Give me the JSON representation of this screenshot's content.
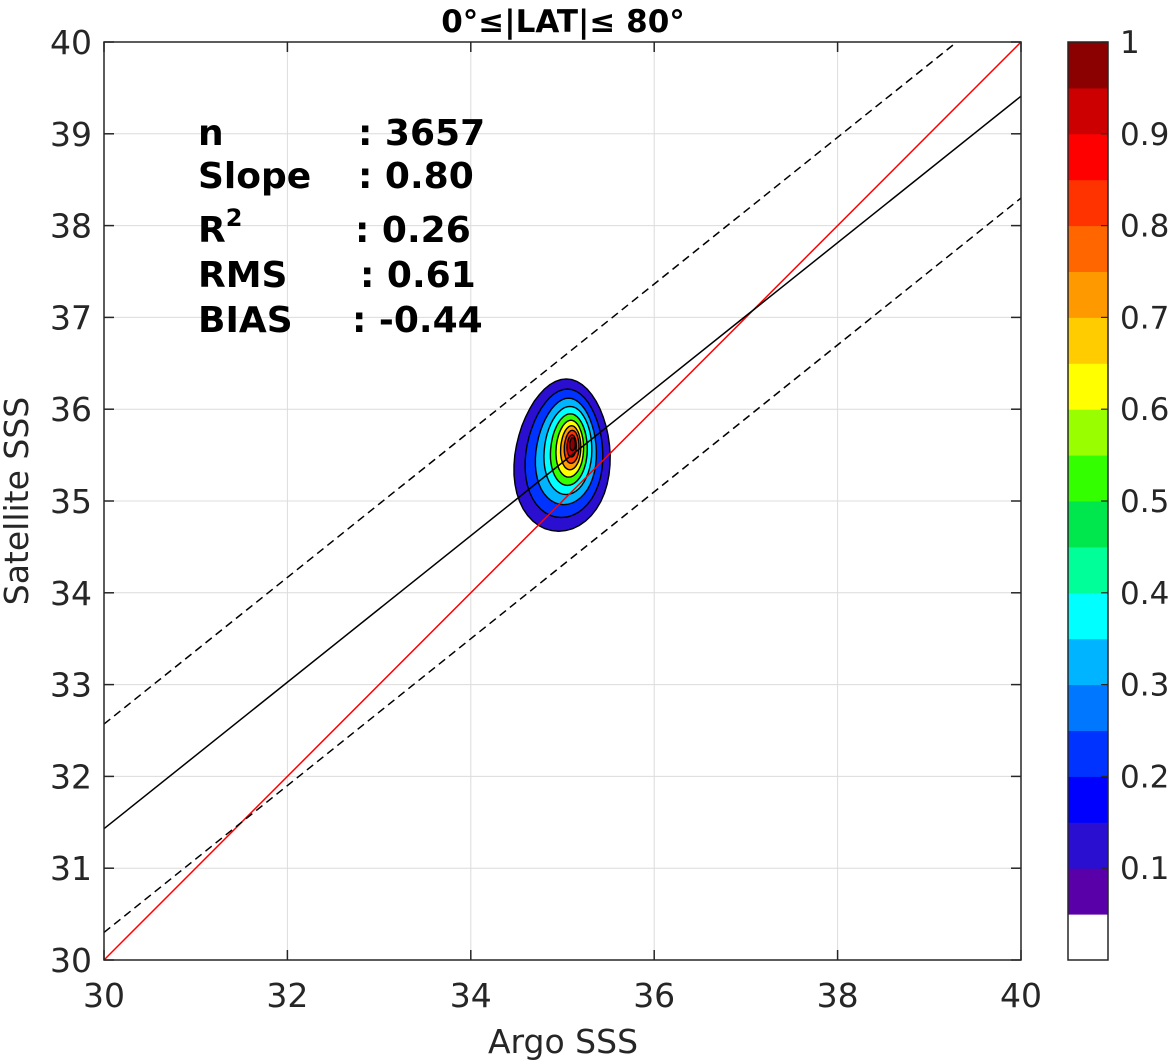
{
  "chart_data": {
    "type": "scatter",
    "title": "0°≤|LAT|≤ 80°",
    "xlabel": "Argo SSS",
    "ylabel": "Satellite SSS",
    "xlim": [
      30,
      40
    ],
    "ylim": [
      30,
      40
    ],
    "x_ticks": [
      "30",
      "32",
      "34",
      "36",
      "38",
      "40"
    ],
    "y_ticks": [
      "30",
      "31",
      "32",
      "33",
      "34",
      "35",
      "36",
      "37",
      "38",
      "39",
      "40"
    ],
    "grid": true,
    "stats": [
      {
        "key": "n",
        "sep": ":",
        "value": "3657"
      },
      {
        "key": "Slope",
        "sep": ":",
        "value": "0.80"
      },
      {
        "key": "R",
        "sup": "2",
        "sep": ":",
        "value": "0.26"
      },
      {
        "key": "RMS",
        "sep": ":",
        "value": "0.61"
      },
      {
        "key": "BIAS",
        "sep": ":",
        "value": "-0.44"
      }
    ],
    "lines": [
      {
        "role": "one-to-one",
        "color": "#ff0000",
        "style": "solid",
        "x": [
          30,
          40
        ],
        "y": [
          30,
          40
        ]
      },
      {
        "role": "regression",
        "color": "#000000",
        "style": "solid",
        "x": [
          30,
          40
        ],
        "y": [
          31.43,
          39.41
        ]
      },
      {
        "role": "upper-bound",
        "color": "#000000",
        "style": "dashed",
        "x": [
          30,
          39.3
        ],
        "y": [
          32.57,
          40
        ]
      },
      {
        "role": "lower-bound",
        "color": "#000000",
        "style": "dashed",
        "x": [
          30,
          40
        ],
        "y": [
          30.3,
          38.3
        ]
      }
    ],
    "density": {
      "center": [
        35.1,
        35.55
      ],
      "levels": [
        0.05,
        0.15,
        0.25,
        0.35,
        0.45,
        0.55,
        0.65,
        0.75,
        0.85,
        0.95
      ],
      "contours": [
        {
          "level": 0.05,
          "rx": 0.52,
          "ry": 0.83,
          "cx": 35.0,
          "cy": 35.5
        },
        {
          "level": 0.15,
          "rx": 0.42,
          "ry": 0.7,
          "cx": 35.02,
          "cy": 35.52
        },
        {
          "level": 0.25,
          "rx": 0.33,
          "ry": 0.58,
          "cx": 35.04,
          "cy": 35.54
        },
        {
          "level": 0.35,
          "rx": 0.26,
          "ry": 0.48,
          "cx": 35.06,
          "cy": 35.55
        },
        {
          "level": 0.45,
          "rx": 0.2,
          "ry": 0.39,
          "cx": 35.07,
          "cy": 35.56
        },
        {
          "level": 0.55,
          "rx": 0.15,
          "ry": 0.31,
          "cx": 35.08,
          "cy": 35.57
        },
        {
          "level": 0.65,
          "rx": 0.11,
          "ry": 0.24,
          "cx": 35.09,
          "cy": 35.58
        },
        {
          "level": 0.75,
          "rx": 0.08,
          "ry": 0.18,
          "cx": 35.1,
          "cy": 35.59
        },
        {
          "level": 0.85,
          "rx": 0.05,
          "ry": 0.12,
          "cx": 35.1,
          "cy": 35.6
        },
        {
          "level": 0.95,
          "rx": 0.03,
          "ry": 0.07,
          "cx": 35.11,
          "cy": 35.62
        }
      ]
    },
    "colorbar": {
      "range": [
        0,
        1
      ],
      "tick_labels": [
        "0.1",
        "0.2",
        "0.3",
        "0.4",
        "0.5",
        "0.6",
        "0.7",
        "0.8",
        "0.9",
        "1"
      ],
      "tick_values": [
        0.1,
        0.2,
        0.3,
        0.4,
        0.5,
        0.6,
        0.7,
        0.8,
        0.9,
        1.0
      ],
      "colors": [
        "#ffffff",
        "#5a00a8",
        "#2b0fd0",
        "#0000ff",
        "#0033ff",
        "#0077ff",
        "#00b4ff",
        "#00ffff",
        "#00ff99",
        "#00e64d",
        "#33ff00",
        "#99ff00",
        "#ffff00",
        "#ffcc00",
        "#ff9900",
        "#ff6600",
        "#ff3300",
        "#ff0000",
        "#cc0000",
        "#8b0000"
      ]
    }
  }
}
